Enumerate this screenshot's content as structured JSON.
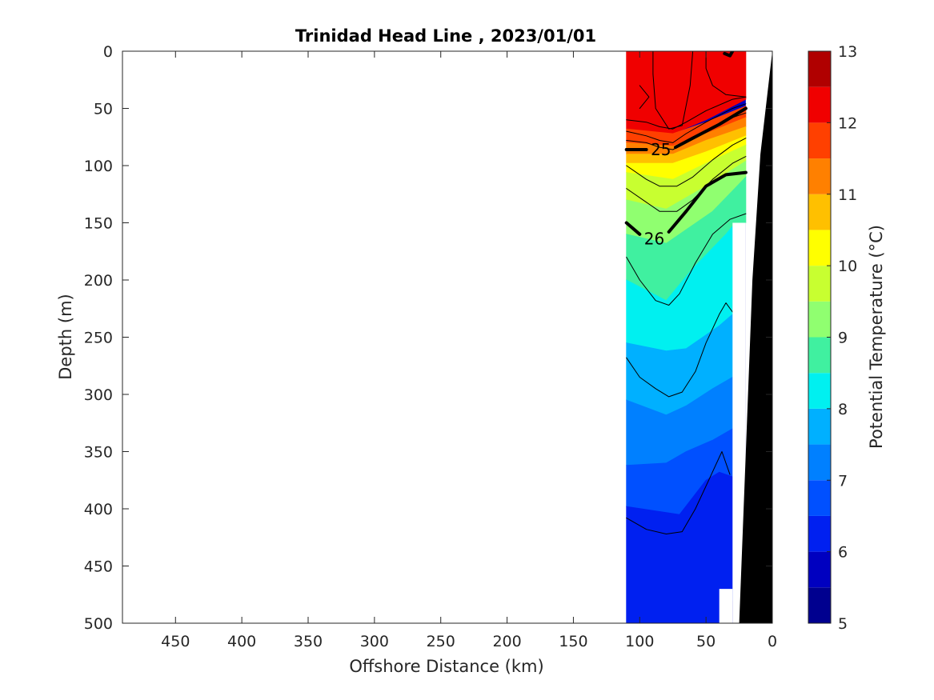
{
  "chart_data": {
    "type": "heatmap",
    "title": "Trinidad Head Line , 2023/01/01",
    "xlabel": "Offshore Distance (km)",
    "ylabel": "Depth (m)",
    "colorbar_label": "Potential Temperature (°C)",
    "x_reversed": true,
    "y_reversed": true,
    "xlim": [
      490,
      0
    ],
    "ylim": [
      0,
      500
    ],
    "x_ticks": [
      450,
      400,
      350,
      300,
      250,
      200,
      150,
      100,
      50,
      0
    ],
    "y_ticks": [
      0,
      50,
      100,
      150,
      200,
      250,
      300,
      350,
      400,
      450,
      500
    ],
    "colorbar_ticks": [
      5,
      6,
      7,
      8,
      9,
      10,
      11,
      12,
      13
    ],
    "colorbar_levels": [
      {
        "from": 5.0,
        "to": 5.5,
        "color": "#00008f"
      },
      {
        "from": 5.5,
        "to": 6.0,
        "color": "#0000c0"
      },
      {
        "from": 6.0,
        "to": 6.5,
        "color": "#0020f0"
      },
      {
        "from": 6.5,
        "to": 7.0,
        "color": "#0050ff"
      },
      {
        "from": 7.0,
        "to": 7.5,
        "color": "#0080ff"
      },
      {
        "from": 7.5,
        "to": 8.0,
        "color": "#00b0ff"
      },
      {
        "from": 8.0,
        "to": 8.5,
        "color": "#00f0f0"
      },
      {
        "from": 8.5,
        "to": 9.0,
        "color": "#40f0a0"
      },
      {
        "from": 9.0,
        "to": 9.5,
        "color": "#90ff70"
      },
      {
        "from": 9.5,
        "to": 10.0,
        "color": "#c8ff30"
      },
      {
        "from": 10.0,
        "to": 10.5,
        "color": "#ffff00"
      },
      {
        "from": 10.5,
        "to": 11.0,
        "color": "#ffc000"
      },
      {
        "from": 11.0,
        "to": 11.5,
        "color": "#ff8000"
      },
      {
        "from": 11.5,
        "to": 12.0,
        "color": "#ff4000"
      },
      {
        "from": 12.0,
        "to": 12.5,
        "color": "#f00000"
      },
      {
        "from": 12.5,
        "to": 13.0,
        "color": "#b00000"
      }
    ],
    "section_extent_km": [
      110,
      20
    ],
    "temperature_bands": [
      {
        "level": 12.5,
        "color": "#b00000",
        "pts": [
          [
            90,
            0
          ],
          [
            60,
            0
          ],
          [
            62,
            30
          ],
          [
            68,
            65
          ],
          [
            78,
            68
          ],
          [
            88,
            50
          ],
          [
            90,
            20
          ]
        ]
      },
      {
        "level": 12.0,
        "color": "#f00000",
        "pts": [
          [
            110,
            0
          ],
          [
            20,
            0
          ],
          [
            20,
            42
          ],
          [
            50,
            60
          ],
          [
            75,
            72
          ],
          [
            110,
            68
          ]
        ]
      },
      {
        "level": 11.5,
        "color": "#ff4000",
        "pts": [
          [
            110,
            68
          ],
          [
            75,
            72
          ],
          [
            50,
            62
          ],
          [
            20,
            48
          ],
          [
            20,
            58
          ],
          [
            50,
            72
          ],
          [
            75,
            83
          ],
          [
            110,
            80
          ]
        ]
      },
      {
        "level": 11.0,
        "color": "#ff8000",
        "pts": [
          [
            110,
            80
          ],
          [
            75,
            83
          ],
          [
            50,
            72
          ],
          [
            20,
            58
          ],
          [
            20,
            66
          ],
          [
            50,
            78
          ],
          [
            75,
            90
          ],
          [
            110,
            90
          ]
        ]
      },
      {
        "level": 10.5,
        "color": "#ffc000",
        "pts": [
          [
            110,
            90
          ],
          [
            75,
            90
          ],
          [
            50,
            78
          ],
          [
            20,
            66
          ],
          [
            20,
            74
          ],
          [
            50,
            88
          ],
          [
            75,
            98
          ],
          [
            110,
            98
          ]
        ]
      },
      {
        "level": 10.0,
        "color": "#ffff00",
        "pts": [
          [
            110,
            98
          ],
          [
            75,
            98
          ],
          [
            50,
            88
          ],
          [
            20,
            74
          ],
          [
            20,
            82
          ],
          [
            50,
            98
          ],
          [
            75,
            112
          ],
          [
            110,
            106
          ]
        ]
      },
      {
        "level": 9.5,
        "color": "#c8ff30",
        "pts": [
          [
            110,
            106
          ],
          [
            75,
            112
          ],
          [
            50,
            98
          ],
          [
            20,
            82
          ],
          [
            20,
            96
          ],
          [
            50,
            118
          ],
          [
            80,
            138
          ],
          [
            110,
            130
          ]
        ]
      },
      {
        "level": 9.0,
        "color": "#90ff70",
        "pts": [
          [
            110,
            130
          ],
          [
            80,
            138
          ],
          [
            50,
            118
          ],
          [
            20,
            96
          ],
          [
            20,
            110
          ],
          [
            45,
            140
          ],
          [
            80,
            168
          ],
          [
            110,
            160
          ]
        ]
      },
      {
        "level": 8.5,
        "color": "#40f0a0",
        "pts": [
          [
            110,
            160
          ],
          [
            80,
            168
          ],
          [
            45,
            140
          ],
          [
            20,
            110
          ],
          [
            20,
            150
          ],
          [
            30,
            153
          ],
          [
            35,
            160
          ],
          [
            60,
            190
          ],
          [
            80,
            218
          ],
          [
            110,
            200
          ]
        ]
      },
      {
        "level": 8.0,
        "color": "#00f0f0",
        "pts": [
          [
            110,
            200
          ],
          [
            80,
            218
          ],
          [
            60,
            190
          ],
          [
            35,
            160
          ],
          [
            30,
            153
          ],
          [
            30,
            230
          ],
          [
            40,
            240
          ],
          [
            65,
            260
          ],
          [
            80,
            262
          ],
          [
            110,
            255
          ]
        ]
      },
      {
        "level": 7.5,
        "color": "#00b0ff",
        "pts": [
          [
            110,
            255
          ],
          [
            80,
            262
          ],
          [
            65,
            260
          ],
          [
            40,
            240
          ],
          [
            30,
            230
          ],
          [
            30,
            285
          ],
          [
            45,
            295
          ],
          [
            65,
            310
          ],
          [
            80,
            318
          ],
          [
            110,
            305
          ]
        ]
      },
      {
        "level": 7.0,
        "color": "#0080ff",
        "pts": [
          [
            110,
            305
          ],
          [
            80,
            318
          ],
          [
            65,
            310
          ],
          [
            45,
            295
          ],
          [
            30,
            285
          ],
          [
            30,
            330
          ],
          [
            45,
            340
          ],
          [
            65,
            350
          ],
          [
            80,
            360
          ],
          [
            110,
            362
          ]
        ]
      },
      {
        "level": 6.5,
        "color": "#0050ff",
        "pts": [
          [
            110,
            362
          ],
          [
            80,
            360
          ],
          [
            65,
            350
          ],
          [
            45,
            340
          ],
          [
            30,
            330
          ],
          [
            30,
            372
          ],
          [
            40,
            368
          ],
          [
            50,
            375
          ],
          [
            70,
            405
          ],
          [
            110,
            398
          ]
        ]
      },
      {
        "level": 6.0,
        "color": "#0020f0",
        "pts": [
          [
            110,
            398
          ],
          [
            70,
            405
          ],
          [
            50,
            375
          ],
          [
            40,
            368
          ],
          [
            30,
            372
          ],
          [
            30,
            480
          ],
          [
            40,
            500
          ],
          [
            110,
            500
          ]
        ]
      }
    ],
    "contour_lines": [
      {
        "pts": [
          [
            110,
            86
          ],
          [
            95,
            86
          ]
        ],
        "bold": true
      },
      {
        "pts": [
          [
            73,
            84
          ],
          [
            60,
            76
          ],
          [
            40,
            64
          ],
          [
            20,
            50
          ]
        ],
        "bold": true
      },
      {
        "pts": [
          [
            110,
            150
          ],
          [
            100,
            160
          ]
        ],
        "bold": true
      },
      {
        "pts": [
          [
            78,
            158
          ],
          [
            65,
            140
          ],
          [
            50,
            118
          ],
          [
            35,
            108
          ],
          [
            20,
            106
          ]
        ],
        "bold": true
      },
      {
        "pts": [
          [
            110,
            180
          ],
          [
            100,
            200
          ],
          [
            88,
            218
          ],
          [
            78,
            222
          ],
          [
            70,
            212
          ],
          [
            58,
            185
          ],
          [
            45,
            160
          ],
          [
            32,
            147
          ],
          [
            20,
            142
          ]
        ],
        "bold": false
      },
      {
        "pts": [
          [
            110,
            268
          ],
          [
            100,
            285
          ],
          [
            88,
            295
          ],
          [
            78,
            302
          ],
          [
            68,
            298
          ],
          [
            58,
            280
          ],
          [
            50,
            255
          ],
          [
            40,
            230
          ],
          [
            35,
            220
          ],
          [
            30,
            228
          ]
        ],
        "bold": false
      },
      {
        "pts": [
          [
            110,
            408
          ],
          [
            95,
            418
          ],
          [
            80,
            422
          ],
          [
            68,
            420
          ],
          [
            58,
            400
          ],
          [
            48,
            375
          ],
          [
            38,
            350
          ],
          [
            32,
            370
          ]
        ],
        "bold": false
      },
      {
        "pts": [
          [
            110,
            100
          ],
          [
            95,
            112
          ],
          [
            85,
            118
          ],
          [
            72,
            118
          ],
          [
            60,
            110
          ],
          [
            45,
            95
          ],
          [
            30,
            82
          ],
          [
            20,
            76
          ]
        ],
        "bold": false
      },
      {
        "pts": [
          [
            110,
            120
          ],
          [
            95,
            132
          ],
          [
            85,
            140
          ],
          [
            72,
            140
          ],
          [
            60,
            130
          ],
          [
            45,
            112
          ],
          [
            30,
            98
          ],
          [
            20,
            92
          ]
        ],
        "bold": false
      },
      {
        "pts": [
          [
            110,
            60
          ],
          [
            95,
            62
          ],
          [
            85,
            66
          ],
          [
            75,
            68
          ],
          [
            65,
            62
          ],
          [
            50,
            52
          ],
          [
            30,
            42
          ],
          [
            20,
            40
          ]
        ],
        "bold": false
      },
      {
        "pts": [
          [
            110,
            70
          ],
          [
            95,
            74
          ],
          [
            85,
            78
          ],
          [
            75,
            80
          ],
          [
            65,
            72
          ],
          [
            50,
            62
          ],
          [
            30,
            50
          ],
          [
            20,
            46
          ]
        ],
        "bold": false
      },
      {
        "pts": [
          [
            110,
            78
          ],
          [
            95,
            80
          ],
          [
            85,
            84
          ],
          [
            75,
            86
          ],
          [
            65,
            80
          ],
          [
            50,
            70
          ],
          [
            30,
            58
          ],
          [
            20,
            54
          ]
        ],
        "bold": false
      },
      {
        "pts": [
          [
            100,
            30
          ],
          [
            93,
            40
          ],
          [
            100,
            50
          ]
        ],
        "bold": false
      },
      {
        "pts": [
          [
            60,
            0
          ],
          [
            62,
            30
          ],
          [
            68,
            65
          ],
          [
            78,
            68
          ],
          [
            88,
            50
          ],
          [
            90,
            20
          ],
          [
            90,
            0
          ]
        ],
        "bold": false
      },
      {
        "pts": [
          [
            50,
            0
          ],
          [
            50,
            15
          ],
          [
            45,
            30
          ],
          [
            35,
            38
          ],
          [
            20,
            40
          ]
        ],
        "bold": false
      },
      {
        "pts": [
          [
            30,
            0
          ],
          [
            32,
            4
          ],
          [
            36,
            2
          ]
        ],
        "bold": true
      }
    ],
    "contour_labels": [
      {
        "text": "25",
        "x": 84,
        "y": 86
      },
      {
        "text": "26",
        "x": 89,
        "y": 164
      }
    ],
    "blank_regions": [
      [
        [
          30,
          150
        ],
        [
          20,
          150
        ],
        [
          20,
          500
        ],
        [
          30,
          500
        ]
      ],
      [
        [
          40,
          470
        ],
        [
          30,
          470
        ],
        [
          30,
          500
        ],
        [
          40,
          500
        ]
      ]
    ],
    "bathymetry_polygon": [
      [
        25,
        500
      ],
      [
        20,
        350
      ],
      [
        15,
        200
      ],
      [
        9,
        90
      ],
      [
        0,
        0
      ],
      [
        0,
        500
      ]
    ]
  }
}
